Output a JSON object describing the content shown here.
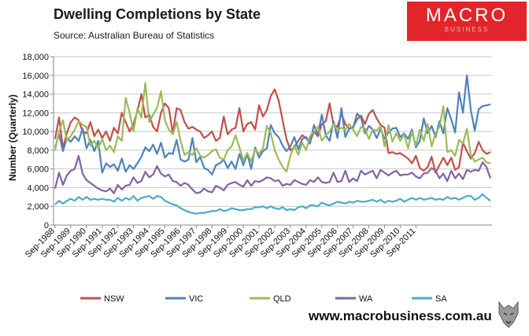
{
  "header": {
    "title": "Dwelling Completions by State",
    "source": "Source:    Australian Bureau of Statistics"
  },
  "brand": {
    "name": "MACRO",
    "sub": "BUSINESS"
  },
  "footer": {
    "url": "www.macrobusiness.com.au"
  },
  "chart_data": {
    "type": "line",
    "title": "Dwelling Completions by State",
    "xlabel": "",
    "ylabel": "Number (Quarterly)",
    "ylim": [
      0,
      18000
    ],
    "yticks": [
      "0",
      "2,000",
      "4,000",
      "6,000",
      "8,000",
      "10,000",
      "12,000",
      "14,000",
      "16,000",
      "18,000"
    ],
    "xticks": [
      "Sep-1988",
      "Sep-1989",
      "Sep-1990",
      "Sep-1991",
      "Sep-1992",
      "Sep-1993",
      "Sep-1994",
      "Sep-1995",
      "Sep-1996",
      "Sep-1997",
      "Sep-1998",
      "Sep-1999",
      "Sep-2000",
      "Sep-2001",
      "Sep-2002",
      "Sep-2003",
      "Sep-2004",
      "Sep-2005",
      "Sep-2006",
      "Sep-2007",
      "Sep-2008",
      "Sep-2009",
      "Sep-2010",
      "Sep-2011"
    ],
    "x_start": "Sep-1988",
    "x_step": "quarter",
    "series": [
      {
        "name": "NSW",
        "color": "#c0504d",
        "values": [
          9200,
          11500,
          8200,
          9800,
          11000,
          11500,
          11200,
          10000,
          9800,
          11000,
          9500,
          10200,
          9300,
          10000,
          9000,
          10400,
          9800,
          12000,
          11000,
          10000,
          10800,
          12200,
          14000,
          11500,
          11800,
          10500,
          10000,
          12000,
          13000,
          12500,
          9800,
          12500,
          12300,
          11000,
          10300,
          10500,
          10200,
          10000,
          9300,
          9600,
          10000,
          9000,
          9300,
          11600,
          9700,
          10200,
          10400,
          12500,
          10000,
          10800,
          11000,
          10200,
          12800,
          11600,
          12300,
          13800,
          14500,
          13300,
          11200,
          9200,
          8000,
          8300,
          9000,
          9600,
          9300,
          8900,
          10000,
          9500,
          10800,
          11100,
          13000,
          10700,
          10500,
          11900,
          10800,
          10300,
          10500,
          11300,
          11700,
          10800,
          11900,
          12300,
          11400,
          10700,
          10400,
          7700,
          7800,
          7600,
          7700,
          7400,
          7100,
          6600,
          7400,
          6100,
          5800,
          6200,
          7300,
          5600,
          6400,
          7200,
          6400,
          7200,
          5900,
          6200,
          8800,
          7900,
          7100,
          7700,
          8900,
          8000,
          7600,
          7800
        ]
      },
      {
        "name": "VIC",
        "color": "#4f81bd",
        "values": [
          8300,
          9700,
          7900,
          9300,
          8900,
          9500,
          9000,
          10300,
          8200,
          9100,
          7900,
          9000,
          5600,
          6600,
          6200,
          6500,
          5800,
          7100,
          5700,
          6400,
          6000,
          6600,
          7300,
          8300,
          7900,
          8600,
          7600,
          8800,
          7200,
          7700,
          7600,
          9100,
          7000,
          6800,
          7000,
          9300,
          6700,
          7300,
          6100,
          5900,
          5400,
          6400,
          6600,
          7000,
          6100,
          6800,
          6000,
          7600,
          6400,
          7600,
          6000,
          8300,
          7200,
          7900,
          8200,
          10700,
          9800,
          9400,
          8500,
          7900,
          8400,
          9400,
          8100,
          9200,
          9400,
          8700,
          10700,
          9700,
          11800,
          9600,
          9000,
          11100,
          9300,
          12500,
          9400,
          10300,
          10400,
          11900,
          11500,
          9800,
          10600,
          10200,
          9300,
          10300,
          9200,
          9900,
          10300,
          10400,
          9400,
          9800,
          9200,
          10200,
          8300,
          9000,
          11400,
          9800,
          10600,
          9400,
          11100,
          9800,
          12500,
          11300,
          9900,
          14200,
          12000,
          16000,
          12300,
          10100,
          12400,
          12700,
          12800,
          12900
        ]
      },
      {
        "name": "QLD",
        "color": "#9bbb59",
        "values": [
          8000,
          10000,
          11200,
          9000,
          9500,
          10200,
          11100,
          10700,
          10500,
          8500,
          9000,
          8200,
          9200,
          8000,
          8500,
          7800,
          9500,
          9000,
          13600,
          12000,
          10000,
          12500,
          11500,
          15200,
          11000,
          11800,
          12500,
          14300,
          11200,
          10200,
          9700,
          11000,
          9000,
          7500,
          7800,
          7500,
          8200,
          7400,
          7200,
          7500,
          7900,
          8100,
          7200,
          7000,
          8000,
          8400,
          9600,
          8300,
          6900,
          7700,
          6800,
          8100,
          7600,
          8200,
          10600,
          9800,
          8000,
          7000,
          6200,
          5700,
          7400,
          8500,
          7500,
          8800,
          8000,
          9500,
          10000,
          10500,
          9000,
          9600,
          10000,
          10800,
          10100,
          10400,
          10200,
          10800,
          10200,
          9500,
          10500,
          10300,
          9200,
          10200,
          10100,
          10600,
          8400,
          10700,
          8900,
          9800,
          9000,
          9700,
          8200,
          10000,
          8500,
          10200,
          9000,
          10800,
          8400,
          9800,
          10500,
          12700,
          7800,
          8000,
          7400,
          9100,
          8700,
          10300,
          7500,
          6800,
          7000,
          7200,
          6700,
          6600
        ]
      },
      {
        "name": "WA",
        "color": "#8064a2",
        "values": [
          3900,
          5600,
          4300,
          5300,
          5800,
          6000,
          7400,
          5500,
          4800,
          4500,
          4200,
          3900,
          3700,
          3600,
          3900,
          3400,
          4300,
          3800,
          4200,
          4300,
          5100,
          4500,
          4700,
          5700,
          5100,
          5400,
          6300,
          5500,
          5200,
          5400,
          4700,
          4600,
          4200,
          4500,
          4300,
          3800,
          3400,
          3500,
          3900,
          3600,
          3500,
          4200,
          4000,
          3700,
          4300,
          4500,
          4600,
          4300,
          4100,
          4800,
          4200,
          4700,
          4600,
          4800,
          5100,
          5000,
          4700,
          4800,
          4200,
          4400,
          4300,
          4800,
          4600,
          4400,
          4300,
          4800,
          4600,
          5100,
          4600,
          4500,
          4600,
          5600,
          4600,
          4700,
          5800,
          4600,
          5000,
          4700,
          5800,
          5400,
          5600,
          5800,
          5000,
          5900,
          5600,
          5300,
          5600,
          5800,
          5300,
          5400,
          5400,
          5600,
          5200,
          5000,
          5500,
          5600,
          6100,
          5800,
          5000,
          5500,
          4700,
          5800,
          5000,
          5500,
          4900,
          5900,
          5700,
          5900,
          5800,
          6700,
          6200,
          5000
        ]
      },
      {
        "name": "SA",
        "color": "#4bacc6",
        "values": [
          2200,
          2600,
          2300,
          2600,
          2800,
          2600,
          3000,
          2700,
          3000,
          2700,
          2800,
          2700,
          2800,
          2700,
          2700,
          2500,
          2900,
          2600,
          2900,
          2700,
          3100,
          2600,
          2900,
          3000,
          3100,
          2800,
          3100,
          3000,
          2600,
          2400,
          2200,
          2100,
          1800,
          1600,
          1400,
          1300,
          1200,
          1300,
          1300,
          1400,
          1500,
          1500,
          1700,
          1500,
          1600,
          1800,
          1700,
          1600,
          1600,
          1700,
          1700,
          1900,
          1900,
          2000,
          1800,
          2000,
          1800,
          1700,
          1900,
          1600,
          1700,
          1600,
          1900,
          2000,
          1800,
          2100,
          2100,
          2000,
          2400,
          2200,
          2100,
          2300,
          2500,
          2400,
          2300,
          2500,
          2400,
          2600,
          2500,
          2500,
          2600,
          2700,
          2500,
          2700,
          2400,
          2600,
          2500,
          2600,
          2800,
          2500,
          2700,
          2900,
          2700,
          2900,
          2700,
          2800,
          2900,
          2700,
          2800,
          2700,
          3000,
          2800,
          2900,
          2700,
          2900,
          3100,
          3100,
          2700,
          2900,
          3300,
          2900,
          2600
        ]
      }
    ]
  }
}
